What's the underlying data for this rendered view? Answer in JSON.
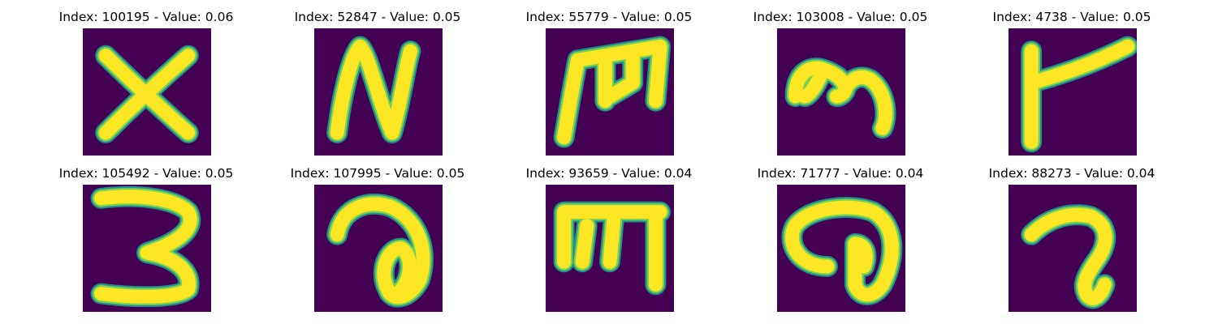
{
  "colors": {
    "background": "#440154",
    "stroke_edge": "#21918c",
    "stroke_mid": "#7ad151",
    "stroke_core": "#fde725"
  },
  "panels": [
    {
      "title": "Index: 100195 - Value: 0.06",
      "glyph": "x"
    },
    {
      "title": "Index: 52847 - Value: 0.05",
      "glyph": "n"
    },
    {
      "title": "Index: 55779 - Value: 0.05",
      "glyph": "m-comb"
    },
    {
      "title": "Index: 103008 - Value: 0.05",
      "glyph": "m-round"
    },
    {
      "title": "Index: 4738 - Value: 0.05",
      "glyph": "t-tilted"
    },
    {
      "title": "Index: 105492 - Value: 0.05",
      "glyph": "three"
    },
    {
      "title": "Index: 107995 - Value: 0.05",
      "glyph": "a-loop"
    },
    {
      "title": "Index: 93659 - Value: 0.04",
      "glyph": "m-bar"
    },
    {
      "title": "Index: 71777 - Value: 0.04",
      "glyph": "at-loop"
    },
    {
      "title": "Index: 88273 - Value: 0.04",
      "glyph": "hook"
    }
  ]
}
